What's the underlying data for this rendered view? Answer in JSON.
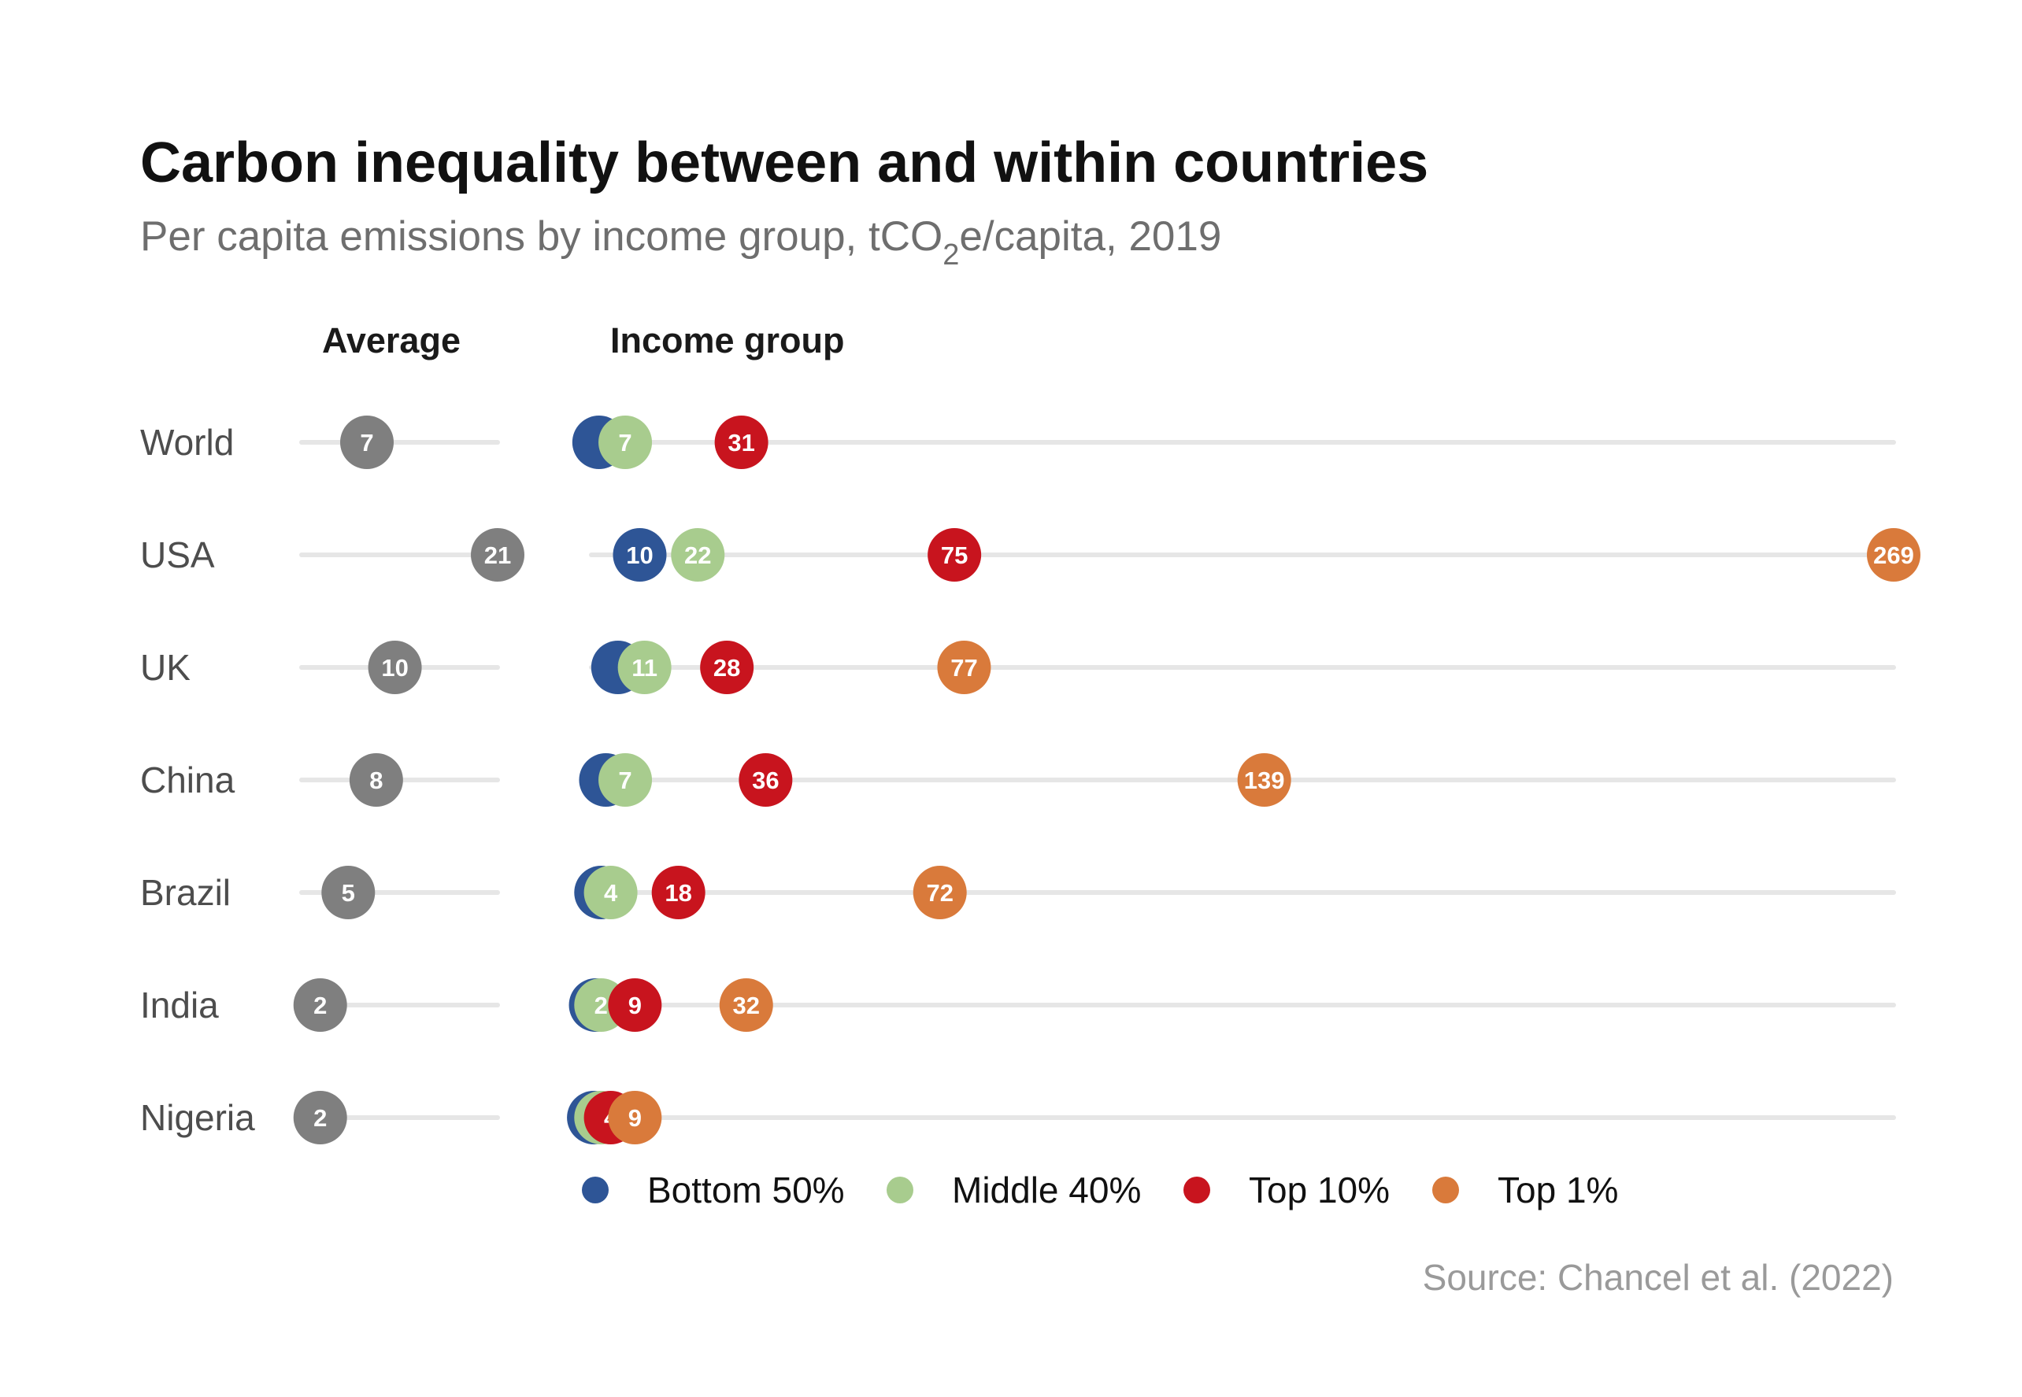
{
  "title": "Carbon inequality between and within countries",
  "subtitle": {
    "prefix": "Per capita emissions by income group, tCO",
    "sub": "2",
    "suffix": "e/capita, 2019"
  },
  "headers": {
    "average": "Average",
    "income_group": "Income group"
  },
  "source": "Source: Chancel et al. (2022)",
  "colors": {
    "average": "#7f7f7f",
    "bottom50": "#2e5596",
    "middle40": "#a8cc8e",
    "top10": "#c8141e",
    "top1": "#d97a3b"
  },
  "legend": [
    {
      "key": "bottom50",
      "label": "Bottom 50%",
      "color": "#2e5596"
    },
    {
      "key": "middle40",
      "label": "Middle 40%",
      "color": "#a8cc8e"
    },
    {
      "key": "top10",
      "label": "Top 10%",
      "color": "#c8141e"
    },
    {
      "key": "top1",
      "label": "Top 1%",
      "color": "#d97a3b"
    }
  ],
  "chart_data": {
    "type": "dot",
    "x_average_range": [
      0,
      21
    ],
    "x_income_range": [
      0,
      269
    ],
    "categories": [
      "World",
      "USA",
      "UK",
      "China",
      "Brazil",
      "India",
      "Nigeria"
    ],
    "average": [
      7,
      21,
      10,
      8,
      5,
      2,
      2
    ],
    "series": [
      {
        "key": "bottom50",
        "name": "Bottom 50%",
        "values": [
          1.6,
          10,
          5.5,
          3,
          2,
          0.9,
          0.5
        ],
        "labels": [
          "",
          "10",
          "",
          "",
          "",
          "",
          ""
        ]
      },
      {
        "key": "middle40",
        "name": "Middle 40%",
        "values": [
          7,
          22,
          11,
          7,
          4,
          2,
          2
        ],
        "labels": [
          "7",
          "22",
          "11",
          "7",
          "4",
          "2",
          "2"
        ]
      },
      {
        "key": "top10",
        "name": "Top 10%",
        "values": [
          31,
          75,
          28,
          36,
          18,
          9,
          4
        ],
        "labels": [
          "31",
          "75",
          "28",
          "36",
          "18",
          "9",
          "4"
        ]
      },
      {
        "key": "top1",
        "name": "Top 1%",
        "values": [
          null,
          269,
          77,
          139,
          72,
          32,
          9
        ],
        "labels": [
          "",
          "269",
          "77",
          "139",
          "72",
          "32",
          "9"
        ]
      }
    ]
  }
}
